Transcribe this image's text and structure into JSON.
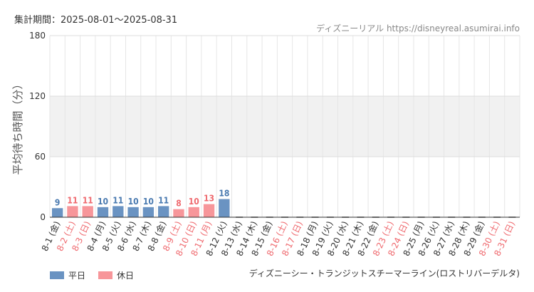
{
  "header": {
    "period_label": "集計期間：2025-08-01～2025-08-31",
    "source_label": "ディズニーリアル https://disneyreal.asumirai.info"
  },
  "footer": {
    "attraction_name": "ディズニーシー・トランジットスチーマーライン(ロストリバーデルタ)"
  },
  "colors": {
    "weekday": "#6a93c2",
    "holiday": "#f7969a",
    "weekday_text": "#4a7ab0",
    "holiday_text": "#ef6a6f",
    "band": "#f1f1f1",
    "grid": "#e6e6e6"
  },
  "chart_data": {
    "type": "bar",
    "ylabel": "平均待ち時間（分）",
    "ylim": [
      0,
      180
    ],
    "yticks": [
      0,
      60,
      120,
      180
    ],
    "grid": true,
    "legend_position": "bottom-left",
    "series": [
      {
        "name": "平日",
        "color": "#6a93c2"
      },
      {
        "name": "休日",
        "color": "#f7969a"
      }
    ],
    "categories": [
      "8-1 (金)",
      "8-2 (土)",
      "8-3 (日)",
      "8-4 (月)",
      "8-5 (火)",
      "8-6 (水)",
      "8-7 (木)",
      "8-8 (金)",
      "8-9 (土)",
      "8-10 (日)",
      "8-11 (月)",
      "8-12 (火)",
      "8-13 (水)",
      "8-14 (木)",
      "8-15 (金)",
      "8-16 (土)",
      "8-17 (日)",
      "8-18 (月)",
      "8-19 (火)",
      "8-20 (水)",
      "8-21 (木)",
      "8-22 (金)",
      "8-23 (土)",
      "8-24 (日)",
      "8-25 (月)",
      "8-26 (火)",
      "8-27 (水)",
      "8-28 (木)",
      "8-29 (金)",
      "8-30 (土)",
      "8-31 (日)"
    ],
    "day_types": [
      "weekday",
      "holiday",
      "holiday",
      "weekday",
      "weekday",
      "weekday",
      "weekday",
      "weekday",
      "holiday",
      "holiday",
      "holiday",
      "weekday",
      "weekday",
      "weekday",
      "weekday",
      "holiday",
      "holiday",
      "weekday",
      "weekday",
      "weekday",
      "weekday",
      "weekday",
      "holiday",
      "holiday",
      "weekday",
      "weekday",
      "weekday",
      "weekday",
      "weekday",
      "holiday",
      "holiday"
    ],
    "values": [
      9,
      11,
      11,
      10,
      11,
      10,
      10,
      11,
      8,
      10,
      13,
      18,
      null,
      null,
      null,
      null,
      null,
      null,
      null,
      null,
      null,
      null,
      null,
      null,
      null,
      null,
      null,
      null,
      null,
      null,
      null
    ]
  }
}
